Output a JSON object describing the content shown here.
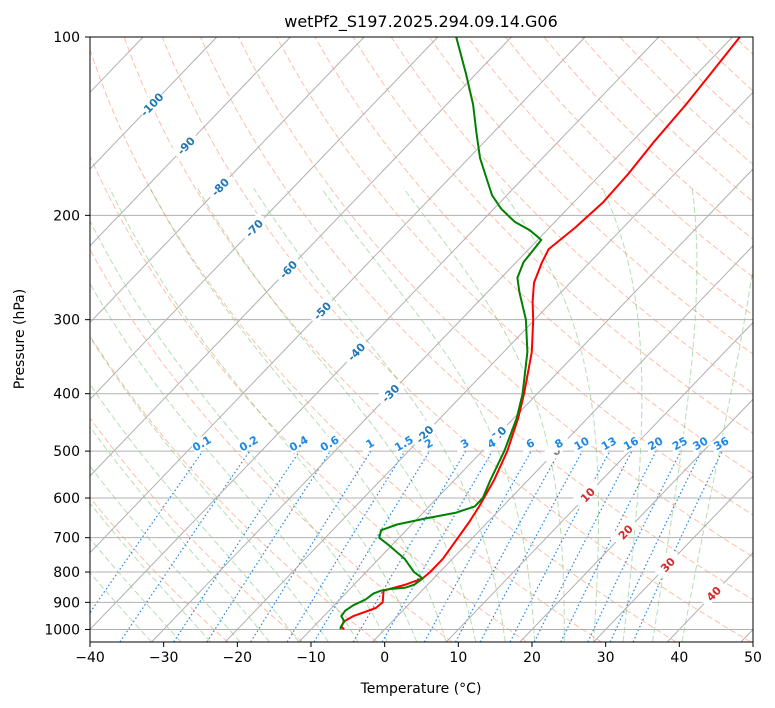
{
  "chart_data": {
    "type": "line",
    "title": "wetPf2_S197.2025.294.09.14.G06",
    "xlabel": "Temperature (°C)",
    "ylabel": "Pressure (hPa)",
    "xlim": [
      -40,
      50
    ],
    "ylim": [
      1050,
      100
    ],
    "yscale": "log",
    "grid": true,
    "x_ticks": [
      -40,
      -30,
      -20,
      -10,
      0,
      10,
      20,
      30,
      40,
      50
    ],
    "x_tick_labels": [
      "−40",
      "−30",
      "−20",
      "−10",
      "0",
      "10",
      "20",
      "30",
      "40",
      "50"
    ],
    "y_ticks": [
      100,
      200,
      300,
      400,
      500,
      600,
      700,
      800,
      900,
      1000
    ],
    "y_tick_labels": [
      "100",
      "200",
      "300",
      "400",
      "500",
      "600",
      "700",
      "800",
      "900",
      "1000"
    ],
    "isotherm_labels": [
      {
        "value": -100,
        "text": "-100"
      },
      {
        "value": -90,
        "text": "-90"
      },
      {
        "value": -80,
        "text": "-80"
      },
      {
        "value": -70,
        "text": "-70"
      },
      {
        "value": -60,
        "text": "-60"
      },
      {
        "value": -50,
        "text": "-50"
      },
      {
        "value": -40,
        "text": "-40"
      },
      {
        "value": -30,
        "text": "-30"
      },
      {
        "value": -20,
        "text": "-20"
      },
      {
        "value": -10,
        "text": "-10"
      },
      {
        "value": 0,
        "text": "0"
      },
      {
        "value": 10,
        "text": "10"
      },
      {
        "value": 20,
        "text": "20"
      },
      {
        "value": 30,
        "text": "30"
      },
      {
        "value": 40,
        "text": "40"
      }
    ],
    "mixing_ratio_labels": [
      "0.1",
      "0.2",
      "0.4",
      "0.6",
      "1",
      "1.5",
      "2",
      "3",
      "4",
      "6",
      "8",
      "10",
      "13",
      "16",
      "20",
      "25",
      "30",
      "36"
    ],
    "series": [
      {
        "kind": "temperature",
        "color": "#ff0000",
        "points": [
          [
            1000,
            -5.5
          ],
          [
            990,
            -6.2
          ],
          [
            970,
            -6.6
          ],
          [
            950,
            -6.0
          ],
          [
            920,
            -4.0
          ],
          [
            900,
            -3.8
          ],
          [
            880,
            -4.5
          ],
          [
            860,
            -5.2
          ],
          [
            840,
            -3.0
          ],
          [
            820,
            -1.5
          ],
          [
            800,
            -1.3
          ],
          [
            760,
            -1.3
          ],
          [
            700,
            -2.0
          ],
          [
            660,
            -2.5
          ],
          [
            620,
            -3.2
          ],
          [
            560,
            -4.6
          ],
          [
            500,
            -6.6
          ],
          [
            440,
            -9.4
          ],
          [
            400,
            -11.8
          ],
          [
            340,
            -16.2
          ],
          [
            300,
            -20.2
          ],
          [
            280,
            -22.6
          ],
          [
            260,
            -24.9
          ],
          [
            240,
            -26.5
          ],
          [
            228,
            -27.3
          ],
          [
            210,
            -26.5
          ],
          [
            190,
            -26.0
          ],
          [
            170,
            -26.3
          ],
          [
            150,
            -27.0
          ],
          [
            130,
            -27.5
          ],
          [
            115,
            -28.2
          ],
          [
            100,
            -29.0
          ]
        ]
      },
      {
        "kind": "dewpoint",
        "color": "#008000",
        "points": [
          [
            1000,
            -6.0
          ],
          [
            990,
            -6.3
          ],
          [
            970,
            -6.5
          ],
          [
            950,
            -7.6
          ],
          [
            930,
            -7.8
          ],
          [
            910,
            -7.4
          ],
          [
            890,
            -6.5
          ],
          [
            870,
            -6.2
          ],
          [
            860,
            -5.5
          ],
          [
            855,
            -4.6
          ],
          [
            850,
            -2.6
          ],
          [
            840,
            -1.8
          ],
          [
            820,
            -1.5
          ],
          [
            800,
            -3.5
          ],
          [
            760,
            -6.5
          ],
          [
            720,
            -10.5
          ],
          [
            700,
            -12.7
          ],
          [
            680,
            -13.4
          ],
          [
            665,
            -12.0
          ],
          [
            650,
            -9.0
          ],
          [
            635,
            -5.5
          ],
          [
            620,
            -3.8
          ],
          [
            600,
            -3.8
          ],
          [
            560,
            -5.1
          ],
          [
            500,
            -7.0
          ],
          [
            440,
            -9.6
          ],
          [
            400,
            -12.0
          ],
          [
            340,
            -16.8
          ],
          [
            300,
            -21.2
          ],
          [
            270,
            -25.6
          ],
          [
            255,
            -27.8
          ],
          [
            240,
            -29.0
          ],
          [
            228,
            -29.3
          ],
          [
            220,
            -29.5
          ],
          [
            212,
            -32.3
          ],
          [
            205,
            -35.5
          ],
          [
            195,
            -39.0
          ],
          [
            185,
            -42.0
          ],
          [
            175,
            -44.5
          ],
          [
            160,
            -48.5
          ],
          [
            145,
            -52.3
          ],
          [
            130,
            -56.4
          ],
          [
            115,
            -61.5
          ],
          [
            100,
            -67.5
          ]
        ]
      }
    ]
  },
  "colors": {
    "isotherm_label": "#1f77b4",
    "isotherm_label_warm": "#d62728",
    "isotherm_label_zero": "#7f7f7f",
    "mixing_ratio": "#1e88e5",
    "dry_adiabat": "#ff7f50",
    "moist_adiabat": "#2ca02c",
    "grid": "#b0b0b0"
  }
}
